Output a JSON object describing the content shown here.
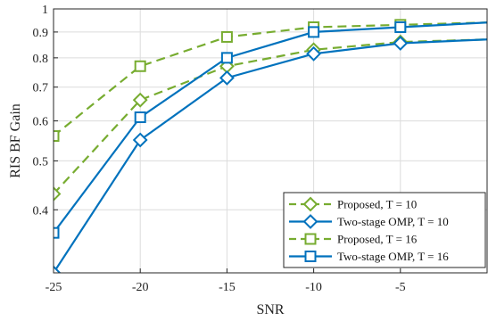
{
  "chart_data": {
    "type": "line",
    "xlabel": "SNR",
    "ylabel": "RIS BF Gain",
    "xlim": [
      -25,
      0
    ],
    "ylim": [
      0.3,
      1.0
    ],
    "yscale": "log",
    "grid": true,
    "legend_position": "bottom-right",
    "x_ticks": [
      -25,
      -20,
      -15,
      -10,
      -5
    ],
    "x_tick_labels": [
      "-25",
      "-20",
      "-15",
      "-10",
      "-5"
    ],
    "y_ticks": [
      0.4,
      0.5,
      0.6,
      0.7,
      0.8,
      0.9,
      1.0
    ],
    "y_tick_labels": [
      "0.4",
      "0.5",
      "0.6",
      "0.7",
      "0.8",
      "0.9",
      "1"
    ],
    "x": [
      -25,
      -20,
      -15,
      -10,
      -5,
      0
    ],
    "series": [
      {
        "name": "Proposed, T = 10",
        "color": "#77ac30",
        "dash": "dashed",
        "marker": "diamond",
        "values": [
          0.43,
          0.66,
          0.77,
          0.83,
          0.86,
          0.87
        ]
      },
      {
        "name": "Two-stage OMP, T = 10",
        "color": "#0072bd",
        "dash": "solid",
        "marker": "diamond",
        "values": [
          0.3,
          0.55,
          0.73,
          0.815,
          0.855,
          0.87
        ]
      },
      {
        "name": "Proposed, T = 16",
        "color": "#77ac30",
        "dash": "dashed",
        "marker": "square",
        "values": [
          0.56,
          0.77,
          0.88,
          0.92,
          0.93,
          0.94
        ]
      },
      {
        "name": "Two-stage OMP, T = 16",
        "color": "#0072bd",
        "dash": "solid",
        "marker": "square",
        "values": [
          0.36,
          0.61,
          0.8,
          0.9,
          0.92,
          0.94
        ]
      }
    ]
  }
}
